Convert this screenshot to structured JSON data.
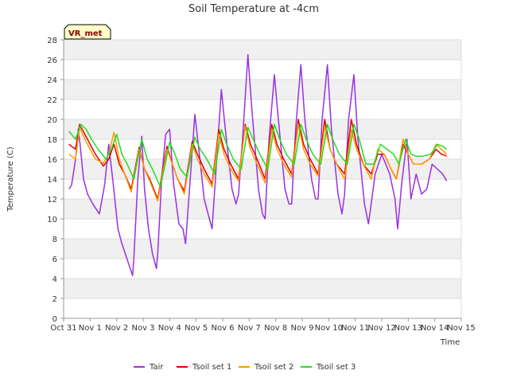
{
  "chart_data": {
    "type": "line",
    "title": "Soil Temperature at -4cm",
    "xlabel": "Time",
    "ylabel": "Temperature (C)",
    "badge": "VR_met",
    "ylim": [
      0,
      28
    ],
    "yticks": [
      0,
      2,
      4,
      6,
      8,
      10,
      12,
      14,
      16,
      18,
      20,
      22,
      24,
      26,
      28
    ],
    "xlim": [
      0,
      15
    ],
    "xtick_labels": [
      "Oct 31",
      "Nov 1",
      "Nov 2",
      "Nov 3",
      "Nov 4",
      "Nov 5",
      "Nov 6",
      "Nov 7",
      "Nov 8",
      "Nov 9",
      "Nov 10",
      "Nov 11",
      "Nov 12",
      "Nov 13",
      "Nov 14",
      "Nov 15"
    ],
    "grid": true,
    "legend_position": "bottom",
    "series": [
      {
        "name": "Tair",
        "color": "#9b30e0",
        "x": [
          0.2,
          0.3,
          0.45,
          0.55,
          0.62,
          0.75,
          0.9,
          1.1,
          1.35,
          1.55,
          1.7,
          1.85,
          2.05,
          2.2,
          2.45,
          2.6,
          2.65,
          2.8,
          2.95,
          3.05,
          3.2,
          3.35,
          3.5,
          3.55,
          3.7,
          3.85,
          4.0,
          4.15,
          4.35,
          4.5,
          4.6,
          4.75,
          4.95,
          5.1,
          5.3,
          5.5,
          5.6,
          5.75,
          5.95,
          6.1,
          6.35,
          6.5,
          6.6,
          6.75,
          6.95,
          7.1,
          7.35,
          7.5,
          7.6,
          7.75,
          7.95,
          8.1,
          8.35,
          8.5,
          8.6,
          8.75,
          8.95,
          9.1,
          9.35,
          9.5,
          9.6,
          9.75,
          9.95,
          10.1,
          10.35,
          10.5,
          10.6,
          10.75,
          10.95,
          11.1,
          11.35,
          11.5,
          11.75,
          12.0,
          12.3,
          12.5,
          12.6,
          12.75,
          12.95,
          13.1,
          13.3,
          13.5,
          13.7,
          13.9,
          14.1,
          14.3,
          14.45
        ],
        "y": [
          13.0,
          13.4,
          16.0,
          19.0,
          17.5,
          14.0,
          12.5,
          11.5,
          10.5,
          13.5,
          17.5,
          14.0,
          9.0,
          7.5,
          5.5,
          4.3,
          6.0,
          14.0,
          18.3,
          13.0,
          9.0,
          6.5,
          5.0,
          6.5,
          14.0,
          18.5,
          19.0,
          13.5,
          9.5,
          9.0,
          7.5,
          13.0,
          20.5,
          17.0,
          12.0,
          10.0,
          9.0,
          15.0,
          23.0,
          19.0,
          13.0,
          11.5,
          12.5,
          18.0,
          26.5,
          21.0,
          13.0,
          10.5,
          10.0,
          18.0,
          24.5,
          20.0,
          13.0,
          11.5,
          11.5,
          19.0,
          25.5,
          20.0,
          14.0,
          12.0,
          12.0,
          20.0,
          25.5,
          19.0,
          12.5,
          10.5,
          12.5,
          20.0,
          24.5,
          18.0,
          11.5,
          9.5,
          14.5,
          16.5,
          14.5,
          12.0,
          9.0,
          13.5,
          18.0,
          12.0,
          14.5,
          12.5,
          13.0,
          15.5,
          15.0,
          14.5,
          13.8
        ]
      },
      {
        "name": "Tsoil set 1",
        "color": "#dd0000",
        "x": [
          0.2,
          0.45,
          0.6,
          0.8,
          1.0,
          1.2,
          1.5,
          1.7,
          1.9,
          2.1,
          2.3,
          2.55,
          2.85,
          3.05,
          3.25,
          3.55,
          3.9,
          4.1,
          4.3,
          4.55,
          4.85,
          5.05,
          5.3,
          5.6,
          5.85,
          6.05,
          6.3,
          6.6,
          6.85,
          7.05,
          7.3,
          7.6,
          7.85,
          8.05,
          8.3,
          8.6,
          8.85,
          9.05,
          9.3,
          9.6,
          9.85,
          10.05,
          10.3,
          10.6,
          10.85,
          11.05,
          11.3,
          11.6,
          11.85,
          12.1,
          12.35,
          12.55,
          12.8,
          13.0,
          13.2,
          13.5,
          13.8,
          14.05,
          14.25,
          14.45
        ],
        "y": [
          17.5,
          17.0,
          19.5,
          18.5,
          17.5,
          16.5,
          15.3,
          16.0,
          17.5,
          15.5,
          14.5,
          13.0,
          17.2,
          15.0,
          14.0,
          12.0,
          17.3,
          15.5,
          14.0,
          12.8,
          17.8,
          16.5,
          15.0,
          13.5,
          19.0,
          17.0,
          15.5,
          14.0,
          19.5,
          17.5,
          16.0,
          14.0,
          19.5,
          17.5,
          16.0,
          14.5,
          20.0,
          17.5,
          16.0,
          14.5,
          20.0,
          17.0,
          15.5,
          14.5,
          20.0,
          17.5,
          15.5,
          14.5,
          16.5,
          16.5,
          15.0,
          14.0,
          17.5,
          16.5,
          15.5,
          15.5,
          16.0,
          17.0,
          16.5,
          16.3
        ]
      },
      {
        "name": "Tsoil set 2",
        "color": "#ff9900",
        "x": [
          0.2,
          0.45,
          0.6,
          0.8,
          1.0,
          1.2,
          1.5,
          1.7,
          1.9,
          2.1,
          2.3,
          2.55,
          2.85,
          3.05,
          3.25,
          3.55,
          3.9,
          4.1,
          4.3,
          4.55,
          4.85,
          5.05,
          5.3,
          5.6,
          5.85,
          6.05,
          6.3,
          6.6,
          6.85,
          7.05,
          7.3,
          7.6,
          7.85,
          8.05,
          8.3,
          8.6,
          8.85,
          9.05,
          9.3,
          9.6,
          9.85,
          10.05,
          10.3,
          10.6,
          10.85,
          11.05,
          11.3,
          11.6,
          11.85,
          12.1,
          12.35,
          12.55,
          12.8,
          13.0,
          13.2,
          13.5,
          13.8,
          14.05,
          14.25,
          14.45
        ],
        "y": [
          16.5,
          16.0,
          19.2,
          18.0,
          17.0,
          16.0,
          15.6,
          16.5,
          18.7,
          16.0,
          14.5,
          12.7,
          17.0,
          15.0,
          13.8,
          11.8,
          17.0,
          15.5,
          14.0,
          12.5,
          17.5,
          16.0,
          14.5,
          13.2,
          18.5,
          16.5,
          15.0,
          13.8,
          19.3,
          17.0,
          15.5,
          13.6,
          19.0,
          17.0,
          15.5,
          14.2,
          19.5,
          17.0,
          15.5,
          14.3,
          19.3,
          17.0,
          15.5,
          14.0,
          19.0,
          17.0,
          15.5,
          14.0,
          17.0,
          16.5,
          15.0,
          14.0,
          18.0,
          16.5,
          15.5,
          15.5,
          16.0,
          17.5,
          17.0,
          16.5
        ]
      },
      {
        "name": "Tsoil set 3",
        "color": "#22dd22",
        "x": [
          0.2,
          0.45,
          0.65,
          0.85,
          1.05,
          1.3,
          1.6,
          1.8,
          2.0,
          2.2,
          2.4,
          2.65,
          2.95,
          3.15,
          3.35,
          3.65,
          4.0,
          4.2,
          4.4,
          4.65,
          4.95,
          5.15,
          5.4,
          5.7,
          5.95,
          6.15,
          6.4,
          6.7,
          6.95,
          7.15,
          7.4,
          7.7,
          7.95,
          8.15,
          8.4,
          8.7,
          8.95,
          9.15,
          9.4,
          9.7,
          9.95,
          10.15,
          10.4,
          10.7,
          10.95,
          11.15,
          11.4,
          11.7,
          11.95,
          12.2,
          12.45,
          12.65,
          12.9,
          13.1,
          13.3,
          13.55,
          13.85,
          14.1,
          14.3,
          14.45
        ],
        "y": [
          18.8,
          18.0,
          19.5,
          19.0,
          18.0,
          17.0,
          16.0,
          17.0,
          18.5,
          16.5,
          15.5,
          14.0,
          18.0,
          16.0,
          15.0,
          13.2,
          17.7,
          16.5,
          15.0,
          14.2,
          18.2,
          17.0,
          16.0,
          14.5,
          19.0,
          17.5,
          16.0,
          15.0,
          19.2,
          18.0,
          16.5,
          15.0,
          19.5,
          18.0,
          16.5,
          15.5,
          19.5,
          18.0,
          16.5,
          15.5,
          19.5,
          18.0,
          16.5,
          15.5,
          19.5,
          18.0,
          15.5,
          15.5,
          17.5,
          17.0,
          16.5,
          15.5,
          18.0,
          16.5,
          16.3,
          16.3,
          16.5,
          17.5,
          17.3,
          17.0
        ]
      }
    ]
  }
}
